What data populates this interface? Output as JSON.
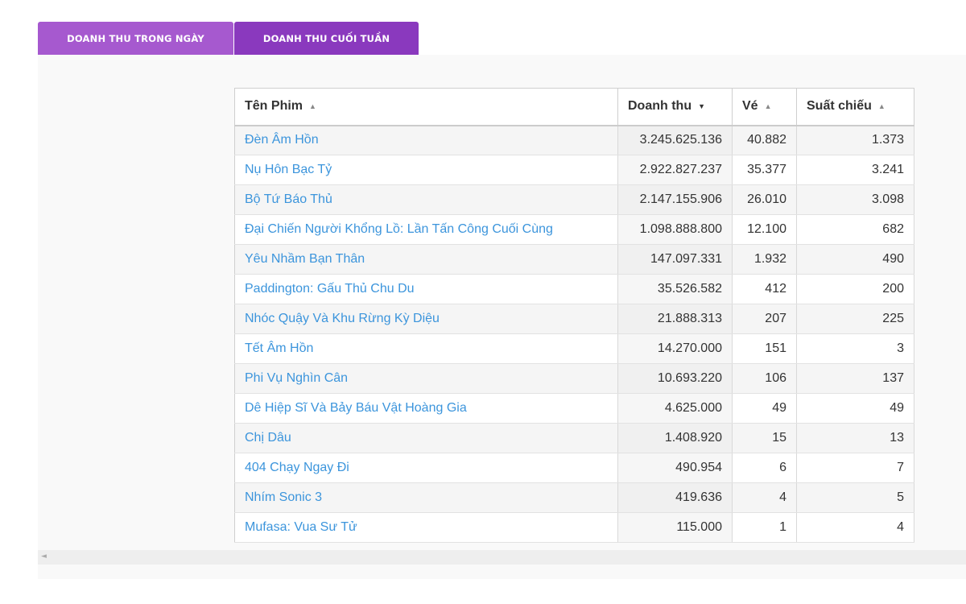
{
  "tabs": [
    {
      "label": "DOANH THU TRONG NGÀY"
    },
    {
      "label": "DOANH THU CUỐI TUẦN"
    }
  ],
  "table": {
    "headers": {
      "name": "Tên Phim",
      "revenue": "Doanh thu",
      "tickets": "Vé",
      "shows": "Suất chiếu"
    },
    "sort_icons": {
      "up": "▲",
      "down": "▼"
    },
    "rows": [
      {
        "name": "Đèn Âm Hồn",
        "revenue": "3.245.625.136",
        "tickets": "40.882",
        "shows": "1.373"
      },
      {
        "name": "Nụ Hôn Bạc Tỷ",
        "revenue": "2.922.827.237",
        "tickets": "35.377",
        "shows": "3.241"
      },
      {
        "name": "Bộ Tứ Báo Thủ",
        "revenue": "2.147.155.906",
        "tickets": "26.010",
        "shows": "3.098"
      },
      {
        "name": "Đại Chiến Người Khổng Lồ: Lần Tấn Công Cuối Cùng",
        "revenue": "1.098.888.800",
        "tickets": "12.100",
        "shows": "682"
      },
      {
        "name": "Yêu Nhầm Bạn Thân",
        "revenue": "147.097.331",
        "tickets": "1.932",
        "shows": "490"
      },
      {
        "name": "Paddington: Gấu Thủ Chu Du",
        "revenue": "35.526.582",
        "tickets": "412",
        "shows": "200"
      },
      {
        "name": "Nhóc Quậy Và Khu Rừng Kỳ Diệu",
        "revenue": "21.888.313",
        "tickets": "207",
        "shows": "225"
      },
      {
        "name": "Tết Âm Hồn",
        "revenue": "14.270.000",
        "tickets": "151",
        "shows": "3"
      },
      {
        "name": "Phi Vụ Nghìn Cân",
        "revenue": "10.693.220",
        "tickets": "106",
        "shows": "137"
      },
      {
        "name": "Dê Hiệp Sĩ Và Bảy Báu Vật Hoàng Gia",
        "revenue": "4.625.000",
        "tickets": "49",
        "shows": "49"
      },
      {
        "name": "Chị Dâu",
        "revenue": "1.408.920",
        "tickets": "15",
        "shows": "13"
      },
      {
        "name": "404 Chạy Ngay Đi",
        "revenue": "490.954",
        "tickets": "6",
        "shows": "7"
      },
      {
        "name": "Nhím Sonic 3",
        "revenue": "419.636",
        "tickets": "4",
        "shows": "5"
      },
      {
        "name": "Mufasa: Vua Sư Tử",
        "revenue": "115.000",
        "tickets": "1",
        "shows": "4"
      }
    ]
  },
  "scrollbar": {
    "left_arrow": "◄"
  },
  "colors": {
    "tab_inactive": "#a659cf",
    "tab_active": "#8a39be",
    "link": "#3c95dc"
  }
}
